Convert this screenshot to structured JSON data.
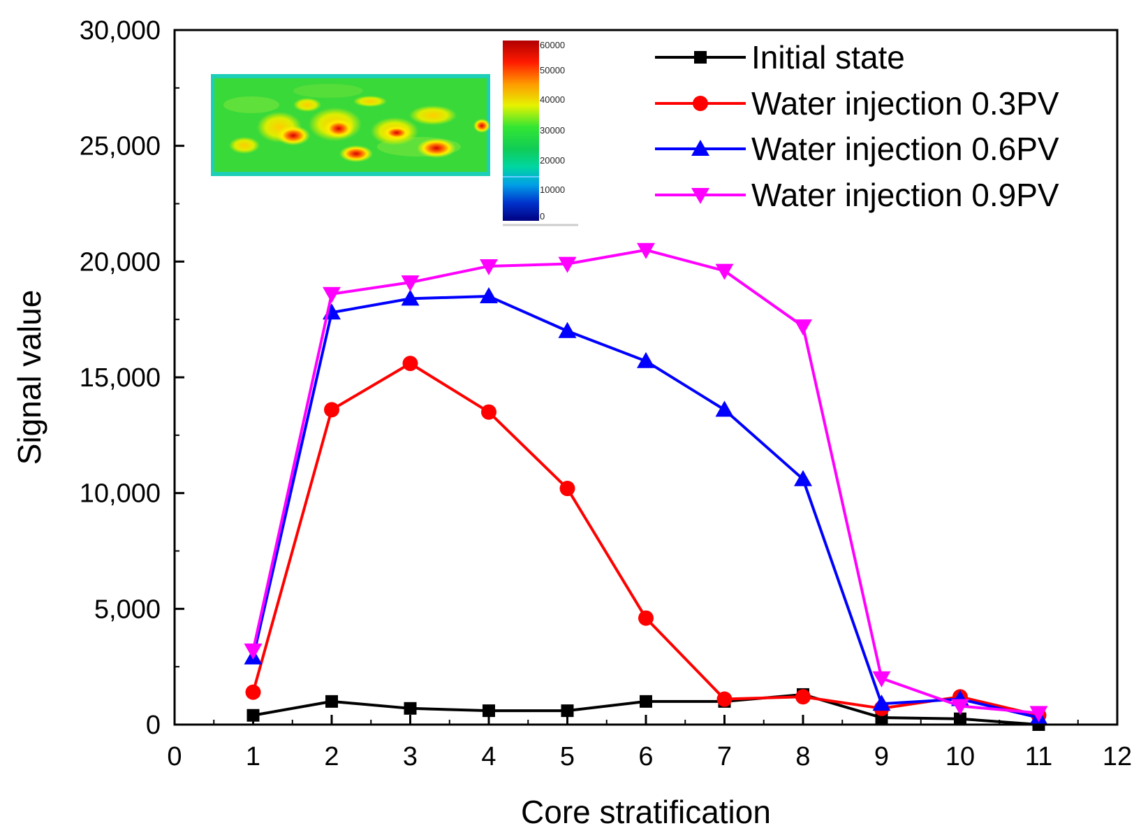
{
  "chart_data": {
    "type": "line",
    "title": "",
    "xlabel": "Core stratification",
    "ylabel": "Signal value",
    "xlim": [
      0,
      12
    ],
    "ylim": [
      0,
      30000
    ],
    "x_ticks": [
      0,
      1,
      2,
      3,
      4,
      5,
      6,
      7,
      8,
      9,
      10,
      11,
      12
    ],
    "y_ticks": [
      0,
      5000,
      10000,
      15000,
      20000,
      25000,
      30000
    ],
    "y_tick_labels": [
      "0",
      "5,000",
      "10,000",
      "15,000",
      "20,000",
      "25,000",
      "30,000"
    ],
    "grid": false,
    "legend_position": "top-right",
    "series": [
      {
        "name": "Initial state",
        "color": "#000000",
        "marker": "square",
        "x": [
          1,
          2,
          3,
          4,
          5,
          6,
          7,
          8,
          9,
          10,
          11
        ],
        "values": [
          400,
          1000,
          700,
          600,
          600,
          1000,
          1000,
          1300,
          300,
          250,
          0
        ]
      },
      {
        "name": "Water injection 0.3PV",
        "color": "#ff0000",
        "marker": "circle",
        "x": [
          1,
          2,
          3,
          4,
          5,
          6,
          7,
          8,
          9,
          10,
          11
        ],
        "values": [
          1400,
          13600,
          15600,
          13500,
          10200,
          4600,
          1100,
          1200,
          700,
          1200,
          400
        ]
      },
      {
        "name": "Water injection 0.6PV",
        "color": "#0000ff",
        "marker": "triangle-up",
        "x": [
          1,
          2,
          3,
          4,
          5,
          6,
          7,
          8,
          9,
          10,
          11
        ],
        "values": [
          2900,
          17800,
          18400,
          18500,
          17000,
          15700,
          13600,
          10600,
          900,
          1100,
          300
        ]
      },
      {
        "name": "Water injection 0.9PV",
        "color": "#ff00ff",
        "marker": "triangle-down",
        "x": [
          1,
          2,
          3,
          4,
          5,
          6,
          7,
          8,
          9,
          10,
          11
        ],
        "values": [
          3200,
          18600,
          19100,
          19800,
          19900,
          20500,
          19600,
          17200,
          2000,
          800,
          500
        ]
      }
    ],
    "inset": {
      "description": "core scan image with color scale",
      "colorbar_labels": [
        "60000",
        "50000",
        "40000",
        "30000",
        "20000",
        "10000",
        "0"
      ]
    }
  }
}
